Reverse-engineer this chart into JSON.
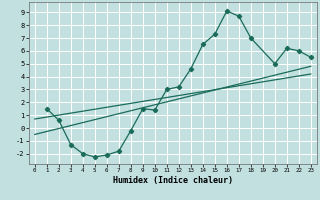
{
  "xlabel": "Humidex (Indice chaleur)",
  "bg_color": "#c2e0e0",
  "grid_color": "#ffffff",
  "line_color": "#1a6b5a",
  "xlim": [
    -0.5,
    23.5
  ],
  "ylim": [
    -2.8,
    9.8
  ],
  "xticks": [
    0,
    1,
    2,
    3,
    4,
    5,
    6,
    7,
    8,
    9,
    10,
    11,
    12,
    13,
    14,
    15,
    16,
    17,
    18,
    19,
    20,
    21,
    22,
    23
  ],
  "yticks": [
    -2,
    -1,
    0,
    1,
    2,
    3,
    4,
    5,
    6,
    7,
    8,
    9
  ],
  "curve_x": [
    1,
    2,
    3,
    4,
    5,
    6,
    7,
    8,
    9,
    10,
    11,
    12,
    13,
    14,
    15,
    16,
    17,
    18,
    20,
    21,
    22,
    23
  ],
  "curve_y": [
    1.5,
    0.6,
    -1.3,
    -2.0,
    -2.25,
    -2.1,
    -1.8,
    -0.2,
    1.5,
    1.4,
    3.0,
    3.2,
    4.6,
    6.5,
    7.3,
    9.1,
    8.7,
    7.0,
    5.0,
    6.2,
    6.0,
    5.5
  ],
  "line1_x": [
    0,
    23
  ],
  "line1_y": [
    -0.5,
    4.8
  ],
  "line2_x": [
    0,
    23
  ],
  "line2_y": [
    0.7,
    4.2
  ],
  "marker": "D",
  "markersize": 2.2,
  "linewidth": 0.9
}
